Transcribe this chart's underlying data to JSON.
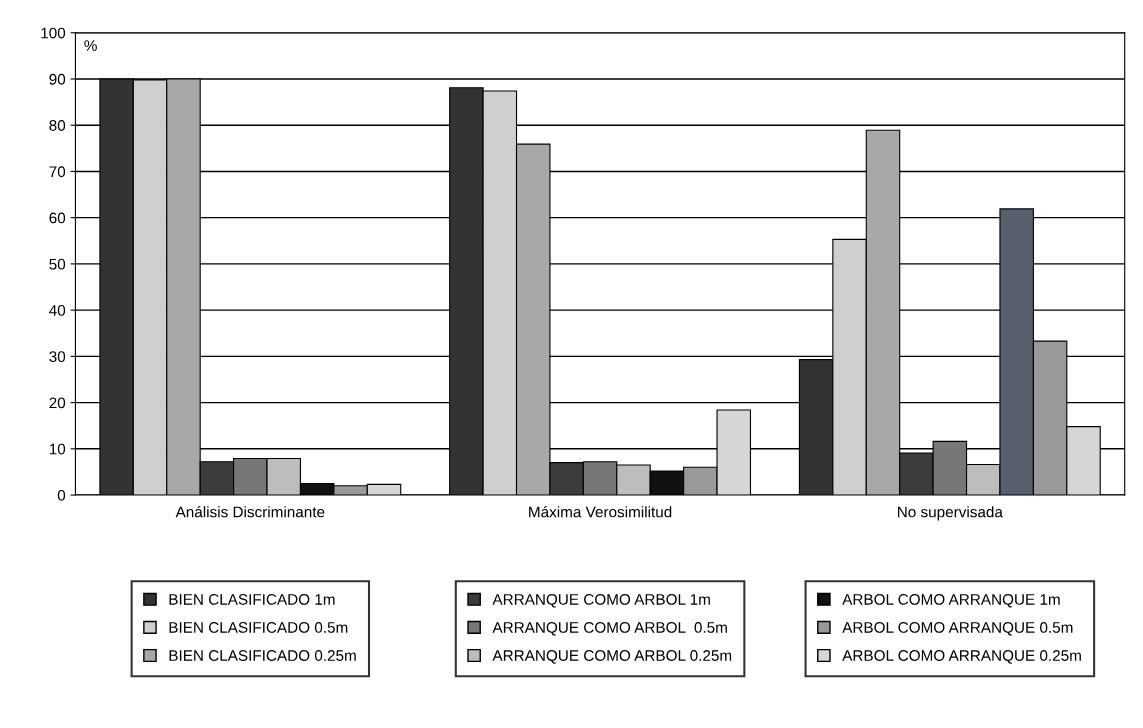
{
  "chart_data": {
    "type": "bar",
    "ylabel": "%",
    "categories": [
      "Análisis Discriminante",
      "Máxima Verosimilitud",
      "No supervisada"
    ],
    "series": [
      {
        "name": "BIEN CLASIFICADO 1m",
        "color": "#333333",
        "values": [
          90,
          88.1,
          29.3
        ]
      },
      {
        "name": "BIEN CLASIFICADO 0.5m",
        "color": "#cfcfcf",
        "values": [
          89.8,
          87.4,
          55.3
        ]
      },
      {
        "name": "BIEN CLASIFICADO 0.25m",
        "color": "#a8a8a8",
        "values": [
          90,
          75.9,
          78.9
        ]
      },
      {
        "name": "ARRANQUE COMO ARBOL 1m",
        "color": "#3c3c3c",
        "values": [
          7.2,
          7.0,
          9.1
        ]
      },
      {
        "name": "ARRANQUE COMO ARBOL  0.5m",
        "color": "#777777",
        "values": [
          7.9,
          7.2,
          11.6
        ]
      },
      {
        "name": "ARRANQUE COMO ARBOL 0.25m",
        "color": "#bdbdbd",
        "values": [
          7.9,
          6.5,
          6.6
        ]
      },
      {
        "name": "ARBOL COMO ARRANQUE 1m",
        "color": "#111111",
        "colors": [
          "#111111",
          "#111111",
          "#58606e"
        ],
        "values": [
          2.5,
          5.2,
          61.9
        ]
      },
      {
        "name": "ARBOL COMO ARRANQUE 0.5m",
        "color": "#999999",
        "values": [
          2.0,
          6.0,
          33.3
        ]
      },
      {
        "name": "ARBOL COMO ARRANQUE 0.25m",
        "color": "#d6d6d6",
        "values": [
          2.3,
          18.4,
          14.8
        ]
      }
    ],
    "ylim": [
      0,
      100
    ],
    "yticks": [
      0,
      10,
      20,
      30,
      40,
      50,
      60,
      70,
      80,
      90,
      100
    ],
    "grid": "y",
    "legend": "bottom"
  }
}
